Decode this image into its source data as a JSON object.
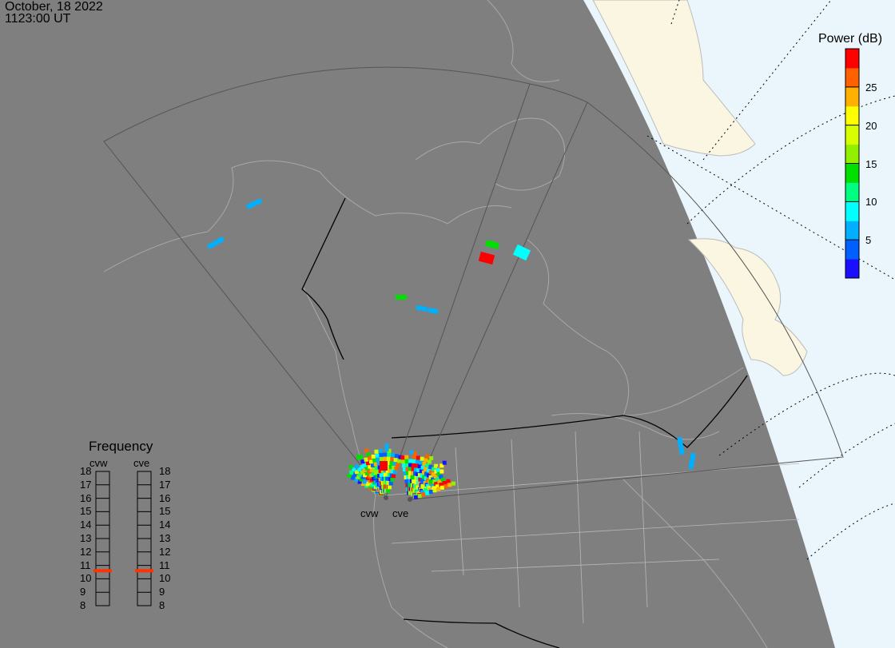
{
  "header": {
    "date": "October, 18 2022",
    "time": "1123:00 UT"
  },
  "colorbar": {
    "title": "Power (dB)",
    "ticks": [
      "25",
      "20",
      "15",
      "10",
      "5"
    ],
    "tick_values": [
      25,
      20,
      15,
      10,
      5
    ],
    "range": [
      0,
      30
    ],
    "colors": [
      "#1a10ff",
      "#0060ff",
      "#00b0ff",
      "#00ffff",
      "#00ff80",
      "#00e000",
      "#90f000",
      "#d8ff00",
      "#ffff00",
      "#ffb000",
      "#ff6000",
      "#ff0000"
    ]
  },
  "frequency": {
    "title": "Frequency",
    "radars": [
      {
        "name": "cvw",
        "value_mhz": 10.6
      },
      {
        "name": "cve",
        "value_mhz": 10.6
      }
    ],
    "scale": [
      "18",
      "17",
      "16",
      "15",
      "14",
      "13",
      "12",
      "11",
      "10",
      "9",
      "8"
    ],
    "marker_color": "#ff3300"
  },
  "sites": [
    {
      "name": "cvw"
    },
    {
      "name": "cve"
    }
  ],
  "colors": {
    "night": "#7f7f7f",
    "day_ocean": "#eaf6fc",
    "day_land": "#faf6e2"
  }
}
